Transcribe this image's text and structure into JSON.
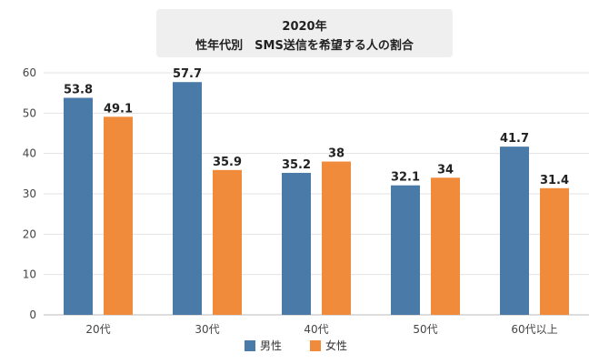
{
  "chart_data": {
    "type": "bar",
    "title": "2020年",
    "subtitle": "性年代別　SMS送信を希望する人の割合",
    "categories": [
      "20代",
      "30代",
      "40代",
      "50代",
      "60代以上"
    ],
    "series": [
      {
        "name": "男性",
        "values": [
          53.8,
          57.7,
          35.2,
          32.1,
          41.7
        ],
        "color": "#4a7ba8"
      },
      {
        "name": "女性",
        "values": [
          49.1,
          35.9,
          38,
          34,
          31.4
        ],
        "color": "#f08b3c"
      }
    ],
    "data_labels": [
      [
        "53.8",
        "57.7",
        "35.2",
        "32.1",
        "41.7"
      ],
      [
        "49.1",
        "35.9",
        "38",
        "34",
        "31.4"
      ]
    ],
    "ylim": [
      0,
      60
    ],
    "yticks": [
      0,
      10,
      20,
      30,
      40,
      50,
      60
    ],
    "grid": true,
    "legend_position": "bottom",
    "xlabel": "",
    "ylabel": ""
  }
}
